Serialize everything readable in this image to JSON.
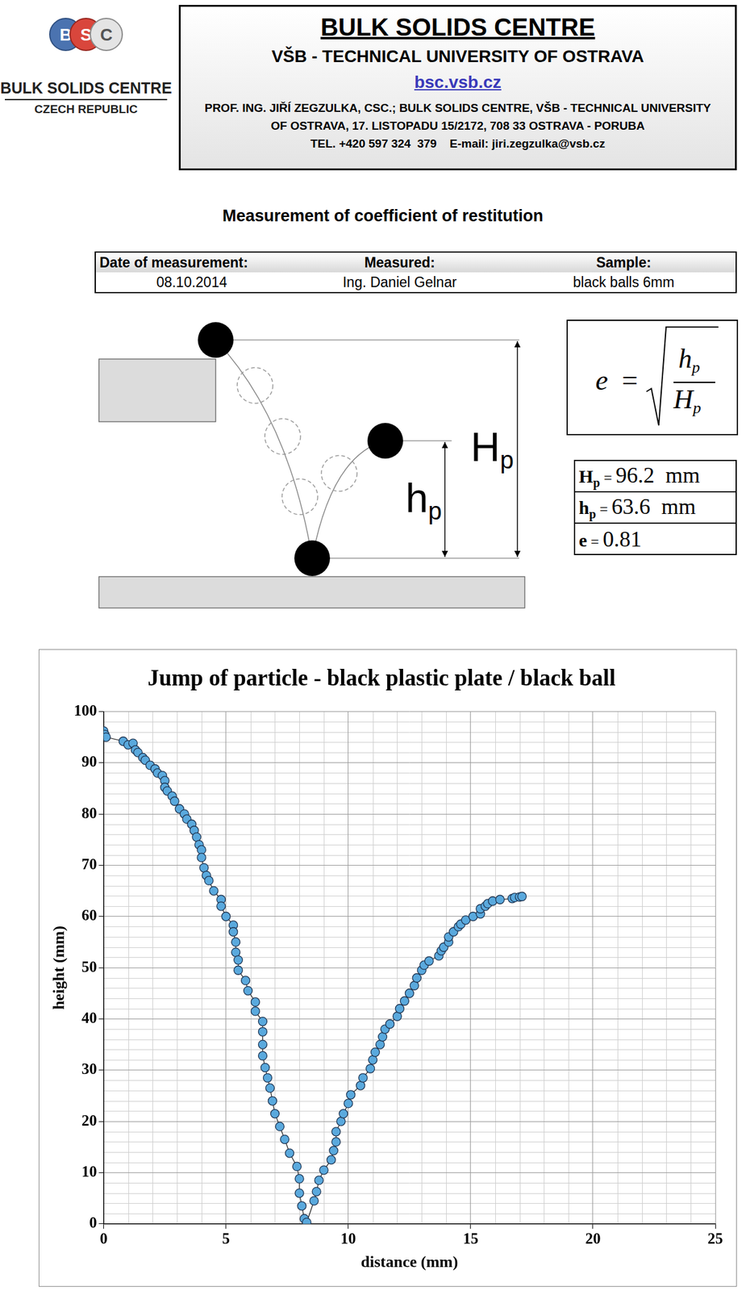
{
  "header": {
    "logo": {
      "letters": [
        "B",
        "S",
        "C"
      ],
      "name": "BULK SOLIDS CENTRE",
      "country": "CZECH REPUBLIC"
    },
    "title": "BULK SOLIDS CENTRE",
    "subtitle": "VŠB - TECHNICAL UNIVERSITY OF OSTRAVA",
    "link": "bsc.vsb.cz",
    "address": [
      "PROF. ING. JIŘÍ ZEGZULKA, CSC.; BULK SOLIDS CENTRE, VŠB - TECHNICAL UNIVERSITY",
      "OF OSTRAVA, 17. LISTOPADU 15/2172, 708 33 OSTRAVA - PORUBA",
      "TEL. +420 597 324  379    E-mail: jiri.zegzulka@vsb.cz"
    ]
  },
  "title": "Measurement of coefficient of restitution",
  "info": {
    "headers": [
      "Date of measurement:",
      "Measured:",
      "Sample:"
    ],
    "values": [
      "08.10.2014",
      "Ing. Daniel Gelnar",
      "black balls 6mm"
    ]
  },
  "diagram": {
    "drop_height": {
      "text": "H",
      "subscript": "p"
    },
    "rebound_height": {
      "text": "h",
      "subscript": "p"
    }
  },
  "formula": {
    "lhs": "e",
    "equals": "=",
    "numerator": {
      "text": "h",
      "subscript": "p"
    },
    "denominator": {
      "text": "H",
      "subscript": "p"
    }
  },
  "results": {
    "equals": "=",
    "rows": [
      {
        "symbol": "H",
        "subscript": "p",
        "value": 96.2,
        "unit": "mm"
      },
      {
        "symbol": "h",
        "subscript": "p",
        "value": 63.6,
        "unit": "mm"
      },
      {
        "symbol": "e",
        "value": 0.81
      }
    ]
  },
  "chart_data": {
    "type": "line",
    "title": "Jump of particle - black plastic plate / black ball",
    "x_label": "distance (mm)",
    "y_label": "height (mm)",
    "x": [
      0,
      0.05,
      0.1,
      0.8,
      1.0,
      1.2,
      1.3,
      1.4,
      1.6,
      1.7,
      1.9,
      2.1,
      2.2,
      2.4,
      2.5,
      2.5,
      2.6,
      2.8,
      2.9,
      3.1,
      3.3,
      3.4,
      3.6,
      3.7,
      3.8,
      3.9,
      4.0,
      4.0,
      4.1,
      4.2,
      4.3,
      4.5,
      4.8,
      4.8,
      5.0,
      5.3,
      5.3,
      5.4,
      5.4,
      5.5,
      5.5,
      5.8,
      5.9,
      6.2,
      6.2,
      6.5,
      6.5,
      6.5,
      6.5,
      6.6,
      6.7,
      6.8,
      6.9,
      7.0,
      7.2,
      7.4,
      7.6,
      7.9,
      8.0,
      8.0,
      8.1,
      8.2,
      8.3,
      8.6,
      8.7,
      8.8,
      9.0,
      9.3,
      9.4,
      9.5,
      9.5,
      9.7,
      9.8,
      10.0,
      10.1,
      10.5,
      10.6,
      10.9,
      11.0,
      11.1,
      11.3,
      11.4,
      11.5,
      11.7,
      12.0,
      12.1,
      12.3,
      12.5,
      12.7,
      12.8,
      13.0,
      13.1,
      13.3,
      13.7,
      13.8,
      13.9,
      14.1,
      14.1,
      14.3,
      14.5,
      14.6,
      14.8,
      15.1,
      15.4,
      15.4,
      15.6,
      15.7,
      15.9,
      16.2,
      16.7,
      16.8,
      17.0,
      17.1
    ],
    "values": [
      96.2,
      95.5,
      95,
      94.2,
      93.5,
      93.8,
      92.5,
      92,
      91,
      90.5,
      89.5,
      88.8,
      88,
      87.5,
      86.5,
      85.2,
      84.5,
      83.5,
      82.5,
      81,
      80,
      79,
      78,
      76.8,
      75.5,
      74,
      73,
      71.5,
      69.5,
      68,
      67,
      65,
      63.3,
      62,
      60,
      58.3,
      57,
      55,
      53,
      51.5,
      49.5,
      47.5,
      45.5,
      43.3,
      41.5,
      39.5,
      37.5,
      35,
      32.8,
      30.5,
      28.5,
      26.5,
      24,
      21.5,
      19,
      16.5,
      13.8,
      11.2,
      8.8,
      6,
      3.5,
      1,
      0.3,
      4.5,
      6.3,
      8.5,
      10.5,
      12.5,
      14.3,
      16,
      18,
      20,
      21.5,
      23.5,
      25.2,
      27,
      28.5,
      30.3,
      32,
      33.5,
      35,
      36.5,
      38,
      39,
      40.5,
      42,
      43.5,
      45,
      46.5,
      48,
      49.5,
      50.5,
      51.3,
      52.3,
      53.3,
      54,
      55,
      56,
      57,
      58,
      58.5,
      59.3,
      60,
      60.5,
      61.5,
      62,
      62.5,
      63,
      63.3,
      63.5,
      63.7,
      63.8,
      63.9
    ],
    "color": "#5aa9dd",
    "marker": "circle",
    "line_style": "solid",
    "xlim": [
      0,
      25
    ],
    "xticks": [
      0,
      5,
      10,
      15,
      20,
      25
    ],
    "ylim": [
      0,
      100
    ],
    "yticks": [
      0,
      10,
      20,
      30,
      40,
      50,
      60,
      70,
      80,
      90,
      100
    ],
    "grid": true
  }
}
